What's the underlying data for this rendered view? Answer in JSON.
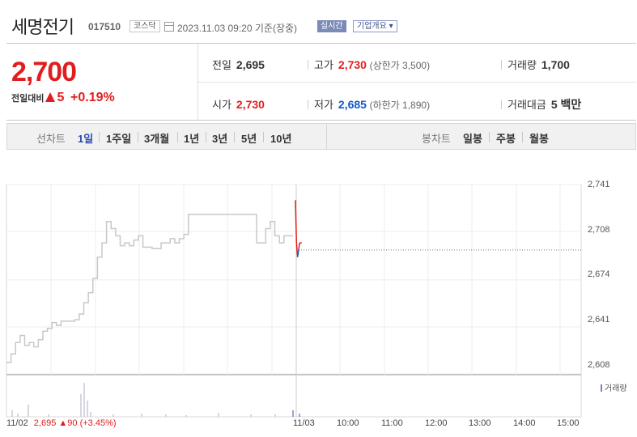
{
  "header": {
    "name": "세명전기",
    "code": "017510",
    "market": "코스닥",
    "datetime": "2023.11.03 09:20",
    "basis": "기준(장중)",
    "realtime": "실시간",
    "company_info": "기업개요 ▾"
  },
  "price": {
    "current": "2,700",
    "change_label": "전일대비",
    "change_abs": "5",
    "change_pct": "+0.19%",
    "prev_close_label": "전일",
    "prev_close": "2,695",
    "high_label": "고가",
    "high": "2,730",
    "upper_limit": "(상한가 3,500)",
    "volume_label": "거래량",
    "volume": "1,700",
    "open_label": "시가",
    "open": "2,730",
    "low_label": "저가",
    "low": "2,685",
    "lower_limit": "(하한가 1,890)",
    "amount_label": "거래대금",
    "amount": "5 백만"
  },
  "tabs": {
    "line_title": "선차트",
    "line": [
      "1일",
      "1주일",
      "3개월",
      "1년",
      "3년",
      "5년",
      "10년"
    ],
    "candle_title": "봉차트",
    "candle": [
      "일봉",
      "주봉",
      "월봉"
    ]
  },
  "colors": {
    "up": "#e01e1e",
    "down": "#1456c9",
    "prev_line": "#c8c8c8",
    "volume": "#7d7dc9"
  },
  "chart_data": {
    "type": "line",
    "yticks": [
      "2,741",
      "2,708",
      "2,674",
      "2,641",
      "2,608"
    ],
    "ylim": [
      2608,
      2741
    ],
    "xticks": [
      "11/03",
      "10:00",
      "11:00",
      "12:00",
      "13:00",
      "14:00",
      "15:00"
    ],
    "prev_day": {
      "date": "11/02",
      "close": "2,695",
      "change": "90",
      "change_pct": "(+3.45%)",
      "values": [
        2616,
        2622,
        2630,
        2635,
        2628,
        2630,
        2627,
        2632,
        2638,
        2640,
        2644,
        2642,
        2645,
        2645,
        2645,
        2646,
        2650,
        2658,
        2665,
        2675,
        2690,
        2700,
        2715,
        2710,
        2705,
        2698,
        2700,
        2698,
        2702,
        2705,
        2697,
        2697,
        2696,
        2696,
        2700,
        2700,
        2703,
        2700,
        2703,
        2706,
        2720,
        2720,
        2720,
        2720,
        2720,
        2720,
        2720,
        2720,
        2720,
        2720,
        2720,
        2720,
        2720,
        2720,
        2720,
        2700,
        2700,
        2710,
        2715,
        2705,
        2700,
        2705,
        2705,
        2705
      ]
    },
    "today": {
      "values": [
        2730,
        2700,
        2690,
        2695,
        2700,
        2700,
        2700
      ],
      "reference": 2695
    },
    "volume_label": "거래량"
  }
}
